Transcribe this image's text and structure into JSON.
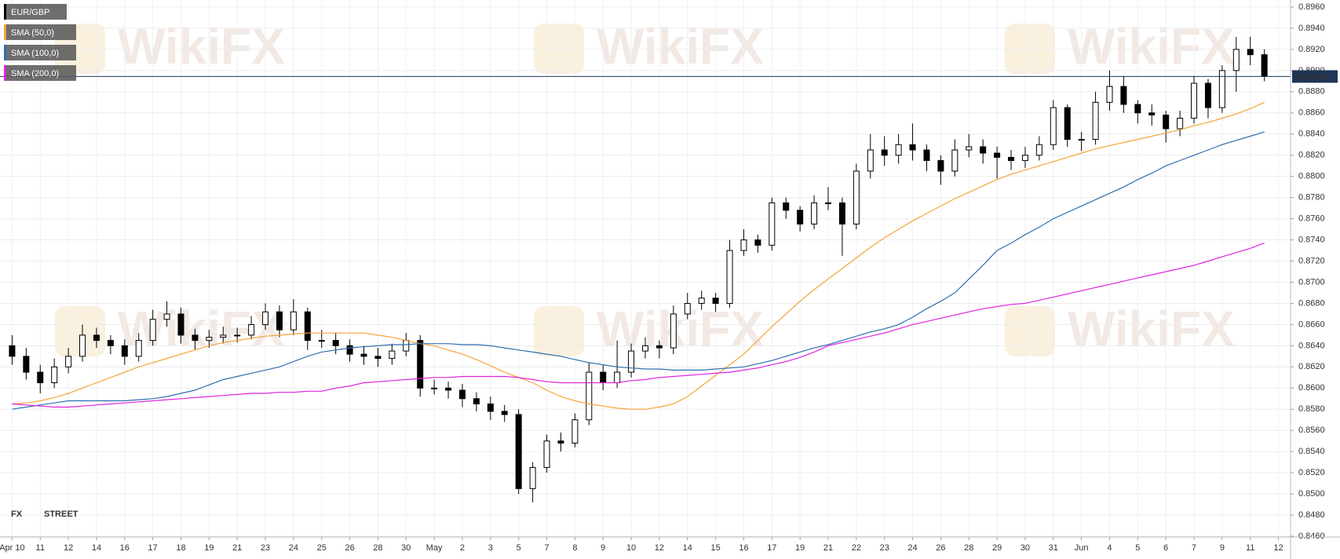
{
  "chart_data": {
    "type": "candlestick",
    "name": "EUR/GBP",
    "watermark": "WikiFX",
    "brand": [
      "FX",
      "STREET"
    ],
    "last_price": 0.88944,
    "up_color": "#ffffff",
    "down_color": "#000000",
    "grid": true,
    "legend": "top-left",
    "xlim": [
      -0.86,
      90.86
    ],
    "xticks": [
      {
        "value": 0,
        "label": "Apr 10"
      },
      {
        "value": 2,
        "label": "11"
      },
      {
        "value": 4,
        "label": "12"
      },
      {
        "value": 6,
        "label": "14"
      },
      {
        "value": 8,
        "label": "16"
      },
      {
        "value": 10,
        "label": "17"
      },
      {
        "value": 12,
        "label": "18"
      },
      {
        "value": 14,
        "label": "19"
      },
      {
        "value": 16,
        "label": "21"
      },
      {
        "value": 18,
        "label": "23"
      },
      {
        "value": 20,
        "label": "24"
      },
      {
        "value": 22,
        "label": "25"
      },
      {
        "value": 24,
        "label": "26"
      },
      {
        "value": 26,
        "label": "28"
      },
      {
        "value": 28,
        "label": "30"
      },
      {
        "value": 30,
        "label": "May"
      },
      {
        "value": 32,
        "label": "2"
      },
      {
        "value": 34,
        "label": "3"
      },
      {
        "value": 36,
        "label": "5"
      },
      {
        "value": 38,
        "label": "7"
      },
      {
        "value": 40,
        "label": "8"
      },
      {
        "value": 42,
        "label": "9"
      },
      {
        "value": 44,
        "label": "10"
      },
      {
        "value": 46,
        "label": "12"
      },
      {
        "value": 48,
        "label": "14"
      },
      {
        "value": 50,
        "label": "15"
      },
      {
        "value": 52,
        "label": "16"
      },
      {
        "value": 54,
        "label": "17"
      },
      {
        "value": 56,
        "label": "19"
      },
      {
        "value": 58,
        "label": "21"
      },
      {
        "value": 60,
        "label": "22"
      },
      {
        "value": 62,
        "label": "23"
      },
      {
        "value": 64,
        "label": "24"
      },
      {
        "value": 66,
        "label": "26"
      },
      {
        "value": 68,
        "label": "28"
      },
      {
        "value": 70,
        "label": "29"
      },
      {
        "value": 72,
        "label": "30"
      },
      {
        "value": 74,
        "label": "31"
      },
      {
        "value": 76,
        "label": "Jun"
      },
      {
        "value": 78,
        "label": "4"
      },
      {
        "value": 80,
        "label": "5"
      },
      {
        "value": 82,
        "label": "6"
      },
      {
        "value": 84,
        "label": "7"
      },
      {
        "value": 86,
        "label": "9"
      },
      {
        "value": 88,
        "label": "11"
      },
      {
        "value": 90,
        "label": "12"
      }
    ],
    "ylim": [
      0.846,
      0.896
    ],
    "yticks": [
      {
        "value": 0.846,
        "label": "0.8460"
      },
      {
        "value": 0.848,
        "label": "0.8480"
      },
      {
        "value": 0.85,
        "label": "0.8500"
      },
      {
        "value": 0.852,
        "label": "0.8520"
      },
      {
        "value": 0.854,
        "label": "0.8540"
      },
      {
        "value": 0.856,
        "label": "0.8560"
      },
      {
        "value": 0.858,
        "label": "0.8580"
      },
      {
        "value": 0.86,
        "label": "0.8600"
      },
      {
        "value": 0.862,
        "label": "0.8620"
      },
      {
        "value": 0.864,
        "label": "0.8640"
      },
      {
        "value": 0.866,
        "label": "0.8660"
      },
      {
        "value": 0.868,
        "label": "0.8680"
      },
      {
        "value": 0.87,
        "label": "0.8700"
      },
      {
        "value": 0.872,
        "label": "0.8720"
      },
      {
        "value": 0.874,
        "label": "0.8740"
      },
      {
        "value": 0.876,
        "label": "0.8760"
      },
      {
        "value": 0.878,
        "label": "0.8780"
      },
      {
        "value": 0.88,
        "label": "0.8800"
      },
      {
        "value": 0.882,
        "label": "0.8820"
      },
      {
        "value": 0.884,
        "label": "0.8840"
      },
      {
        "value": 0.886,
        "label": "0.8860"
      },
      {
        "value": 0.888,
        "label": "0.8880"
      },
      {
        "value": 0.89,
        "label": "0.8900"
      },
      {
        "value": 0.892,
        "label": "0.8920"
      },
      {
        "value": 0.894,
        "label": "0.8940"
      },
      {
        "value": 0.896,
        "label": "0.8960"
      }
    ],
    "open": [
      0.864,
      0.863,
      0.8615,
      0.8605,
      0.862,
      0.863,
      0.865,
      0.8645,
      0.864,
      0.863,
      0.8645,
      0.8665,
      0.867,
      0.865,
      0.8645,
      0.8648,
      0.865,
      0.865,
      0.866,
      0.8672,
      0.8655,
      0.8672,
      0.8645,
      0.8645,
      0.864,
      0.8632,
      0.863,
      0.8628,
      0.8635,
      0.8645,
      0.86,
      0.86,
      0.8598,
      0.859,
      0.8585,
      0.8578,
      0.8575,
      0.8505,
      0.8525,
      0.855,
      0.8548,
      0.857,
      0.8615,
      0.8605,
      0.8615,
      0.8635,
      0.864,
      0.8638,
      0.867,
      0.868,
      0.8685,
      0.868,
      0.873,
      0.874,
      0.8735,
      0.8775,
      0.8768,
      0.8755,
      0.8775,
      0.8775,
      0.8755,
      0.8805,
      0.8825,
      0.882,
      0.883,
      0.8825,
      0.8815,
      0.8805,
      0.8825,
      0.8828,
      0.8822,
      0.8818,
      0.8815,
      0.882,
      0.883,
      0.8865,
      0.8835,
      0.8835,
      0.887,
      0.8885,
      0.8868,
      0.886,
      0.8858,
      0.8845,
      0.8855,
      0.8888,
      0.8865,
      0.89,
      0.892,
      0.8915
    ],
    "high": [
      0.865,
      0.8638,
      0.8622,
      0.8628,
      0.8638,
      0.866,
      0.8657,
      0.865,
      0.8646,
      0.8652,
      0.8674,
      0.8682,
      0.8676,
      0.8656,
      0.8655,
      0.8658,
      0.8657,
      0.8668,
      0.868,
      0.8678,
      0.8684,
      0.8676,
      0.8655,
      0.8652,
      0.8646,
      0.864,
      0.8638,
      0.8642,
      0.8652,
      0.865,
      0.8608,
      0.8606,
      0.8604,
      0.8596,
      0.8592,
      0.8584,
      0.858,
      0.853,
      0.8556,
      0.8558,
      0.8576,
      0.8624,
      0.8622,
      0.8645,
      0.8642,
      0.8648,
      0.8645,
      0.8678,
      0.869,
      0.8692,
      0.869,
      0.874,
      0.875,
      0.8745,
      0.878,
      0.878,
      0.8772,
      0.8782,
      0.879,
      0.878,
      0.8812,
      0.884,
      0.8838,
      0.884,
      0.885,
      0.883,
      0.882,
      0.8835,
      0.884,
      0.8835,
      0.8828,
      0.8825,
      0.8828,
      0.8838,
      0.8872,
      0.8868,
      0.8842,
      0.888,
      0.89,
      0.8895,
      0.8872,
      0.8868,
      0.8862,
      0.8862,
      0.8895,
      0.8892,
      0.8905,
      0.8932,
      0.8932,
      0.892
    ],
    "low": [
      0.8622,
      0.8608,
      0.8595,
      0.86,
      0.8614,
      0.8625,
      0.8638,
      0.8632,
      0.8622,
      0.8625,
      0.864,
      0.8658,
      0.8642,
      0.8636,
      0.8638,
      0.8642,
      0.8643,
      0.8646,
      0.8655,
      0.8648,
      0.865,
      0.8636,
      0.8638,
      0.8632,
      0.8625,
      0.8622,
      0.862,
      0.8622,
      0.863,
      0.8592,
      0.8594,
      0.859,
      0.8582,
      0.8578,
      0.857,
      0.8568,
      0.85,
      0.8492,
      0.852,
      0.854,
      0.8544,
      0.8565,
      0.8598,
      0.86,
      0.861,
      0.8628,
      0.8628,
      0.8632,
      0.8665,
      0.8674,
      0.8672,
      0.8676,
      0.8725,
      0.8728,
      0.873,
      0.876,
      0.8748,
      0.875,
      0.8768,
      0.8725,
      0.875,
      0.8798,
      0.881,
      0.8812,
      0.8815,
      0.8805,
      0.8792,
      0.88,
      0.8818,
      0.8812,
      0.8798,
      0.8806,
      0.8808,
      0.8815,
      0.8825,
      0.8828,
      0.8824,
      0.883,
      0.8862,
      0.886,
      0.885,
      0.8848,
      0.8832,
      0.8838,
      0.885,
      0.8855,
      0.886,
      0.888,
      0.8905,
      0.889
    ],
    "close": [
      0.863,
      0.8615,
      0.8605,
      0.862,
      0.863,
      0.865,
      0.8645,
      0.864,
      0.863,
      0.8645,
      0.8665,
      0.867,
      0.865,
      0.8645,
      0.8648,
      0.865,
      0.865,
      0.866,
      0.8672,
      0.8655,
      0.8672,
      0.8645,
      0.8645,
      0.864,
      0.8632,
      0.863,
      0.8628,
      0.8635,
      0.8645,
      0.86,
      0.86,
      0.8598,
      0.859,
      0.8585,
      0.8578,
      0.8575,
      0.8505,
      0.8525,
      0.855,
      0.8548,
      0.857,
      0.8615,
      0.8605,
      0.8615,
      0.8635,
      0.864,
      0.8638,
      0.867,
      0.868,
      0.8685,
      0.868,
      0.873,
      0.874,
      0.8735,
      0.8775,
      0.8768,
      0.8755,
      0.8775,
      0.8775,
      0.8755,
      0.8805,
      0.8825,
      0.882,
      0.883,
      0.8825,
      0.8815,
      0.8805,
      0.8825,
      0.8828,
      0.8822,
      0.8818,
      0.8815,
      0.882,
      0.883,
      0.8865,
      0.8835,
      0.8835,
      0.887,
      0.8885,
      0.8868,
      0.886,
      0.8858,
      0.8845,
      0.8855,
      0.8888,
      0.8865,
      0.89,
      0.892,
      0.8915,
      0.88944
    ],
    "series": [
      {
        "name": "SMA (50,0)",
        "color": "#f5a33a",
        "values": [
          0.8585,
          0.8586,
          0.8588,
          0.8591,
          0.8595,
          0.86,
          0.8605,
          0.861,
          0.8615,
          0.862,
          0.8624,
          0.8628,
          0.8632,
          0.8636,
          0.864,
          0.8643,
          0.8645,
          0.8647,
          0.8649,
          0.865,
          0.8651,
          0.8652,
          0.8652,
          0.8652,
          0.8652,
          0.8652,
          0.865,
          0.8648,
          0.8645,
          0.8642,
          0.864,
          0.8636,
          0.8632,
          0.8627,
          0.8621,
          0.8615,
          0.861,
          0.8605,
          0.8598,
          0.8592,
          0.8588,
          0.8585,
          0.8583,
          0.8581,
          0.858,
          0.858,
          0.8582,
          0.8585,
          0.8592,
          0.8602,
          0.8612,
          0.8622,
          0.8632,
          0.8645,
          0.8658,
          0.867,
          0.8682,
          0.8693,
          0.8703,
          0.8713,
          0.8723,
          0.8733,
          0.8742,
          0.875,
          0.8758,
          0.8765,
          0.8772,
          0.8779,
          0.8785,
          0.8791,
          0.8797,
          0.8802,
          0.8806,
          0.881,
          0.8814,
          0.8818,
          0.8822,
          0.8826,
          0.8829,
          0.8832,
          0.8835,
          0.8838,
          0.8841,
          0.8844,
          0.8848,
          0.8851,
          0.8855,
          0.8859,
          0.8864,
          0.887
        ]
      },
      {
        "name": "SMA (100,0)",
        "color": "#2f6eb0",
        "values": [
          0.858,
          0.8582,
          0.8584,
          0.8586,
          0.8588,
          0.8588,
          0.8588,
          0.8588,
          0.8588,
          0.8589,
          0.859,
          0.8592,
          0.8595,
          0.8598,
          0.8603,
          0.8608,
          0.8611,
          0.8614,
          0.8617,
          0.862,
          0.8625,
          0.863,
          0.8634,
          0.8636,
          0.8638,
          0.8639,
          0.864,
          0.8641,
          0.8641,
          0.8642,
          0.8642,
          0.8642,
          0.8641,
          0.8641,
          0.864,
          0.8638,
          0.8636,
          0.8634,
          0.8632,
          0.863,
          0.8627,
          0.8624,
          0.8622,
          0.862,
          0.8619,
          0.8618,
          0.8618,
          0.8617,
          0.8617,
          0.8617,
          0.8618,
          0.8619,
          0.862,
          0.8623,
          0.8626,
          0.863,
          0.8634,
          0.8638,
          0.8641,
          0.8645,
          0.8649,
          0.8653,
          0.8656,
          0.866,
          0.8667,
          0.8675,
          0.8682,
          0.869,
          0.8703,
          0.8716,
          0.873,
          0.8737,
          0.8745,
          0.8752,
          0.876,
          0.8766,
          0.8772,
          0.8778,
          0.8784,
          0.879,
          0.8797,
          0.8803,
          0.881,
          0.8815,
          0.882,
          0.8825,
          0.883,
          0.8834,
          0.8838,
          0.8842
        ]
      },
      {
        "name": "SMA (200,0)",
        "color": "#e022e0",
        "values": [
          0.8585,
          0.8584,
          0.8583,
          0.8582,
          0.8582,
          0.8583,
          0.8584,
          0.8585,
          0.8586,
          0.8587,
          0.8588,
          0.8589,
          0.859,
          0.8591,
          0.8592,
          0.8593,
          0.8594,
          0.8595,
          0.8595,
          0.8596,
          0.8596,
          0.8597,
          0.8597,
          0.86,
          0.8602,
          0.8605,
          0.8606,
          0.8607,
          0.8608,
          0.8609,
          0.861,
          0.861,
          0.8611,
          0.8611,
          0.8611,
          0.8611,
          0.861,
          0.8608,
          0.8606,
          0.8605,
          0.8605,
          0.8605,
          0.8605,
          0.8605,
          0.8607,
          0.8608,
          0.861,
          0.8611,
          0.8612,
          0.8613,
          0.8614,
          0.8615,
          0.8617,
          0.8619,
          0.8622,
          0.8625,
          0.8629,
          0.8634,
          0.864,
          0.8643,
          0.8646,
          0.8649,
          0.8652,
          0.8656,
          0.866,
          0.8663,
          0.8666,
          0.8669,
          0.8672,
          0.8675,
          0.8677,
          0.8679,
          0.868,
          0.8683,
          0.8686,
          0.8689,
          0.8692,
          0.8695,
          0.8698,
          0.8701,
          0.8704,
          0.8707,
          0.871,
          0.8713,
          0.8716,
          0.872,
          0.8724,
          0.8728,
          0.8732,
          0.8737
        ]
      }
    ]
  }
}
